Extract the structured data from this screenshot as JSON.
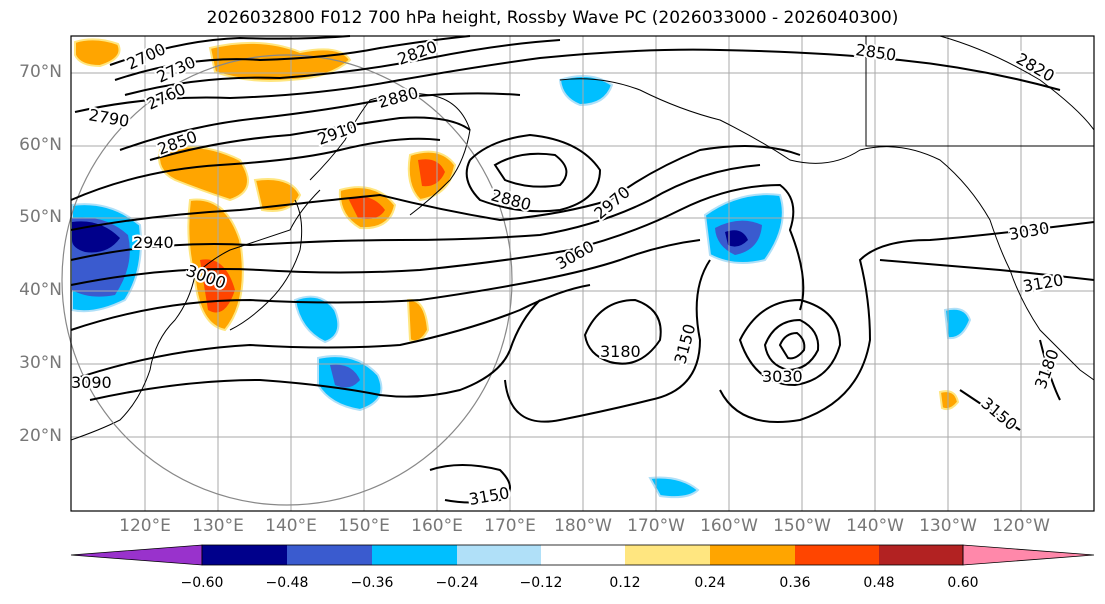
{
  "title": "2026032800 F012 700 hPa height, Rossby Wave PC (2026033000 - 2026040300)",
  "lat_labels": [
    "70°N",
    "60°N",
    "50°N",
    "40°N",
    "30°N",
    "20°N"
  ],
  "lon_labels": [
    "120°E",
    "130°E",
    "140°E",
    "150°E",
    "160°E",
    "170°E",
    "180°W",
    "170°W",
    "160°W",
    "150°W",
    "140°W",
    "130°W",
    "120°W"
  ],
  "colorbar": {
    "colors": [
      "#9932cc",
      "#00008b",
      "#3a5bcf",
      "#00bfff",
      "#b0e0f8",
      "#ffffff",
      "#ffe680",
      "#ffa500",
      "#ff4500",
      "#b22222",
      "#ff88aa"
    ],
    "tick_labels": [
      "−0.60",
      "−0.48",
      "−0.36",
      "−0.24",
      "−0.12",
      "0.12",
      "0.24",
      "0.36",
      "0.48",
      "0.60"
    ]
  },
  "contour_labels": [
    {
      "text": "2700"
    },
    {
      "text": "2730"
    },
    {
      "text": "2760"
    },
    {
      "text": "2790"
    },
    {
      "text": "2820"
    },
    {
      "text": "2850"
    },
    {
      "text": "2850"
    },
    {
      "text": "2880"
    },
    {
      "text": "2880"
    },
    {
      "text": "2910"
    },
    {
      "text": "2940"
    },
    {
      "text": "2970"
    },
    {
      "text": "3000"
    },
    {
      "text": "3030"
    },
    {
      "text": "3030"
    },
    {
      "text": "3060"
    },
    {
      "text": "3090"
    },
    {
      "text": "3120"
    },
    {
      "text": "3150"
    },
    {
      "text": "3150"
    },
    {
      "text": "3150"
    },
    {
      "text": "3180"
    },
    {
      "text": "3180"
    },
    {
      "text": "2820"
    }
  ]
}
